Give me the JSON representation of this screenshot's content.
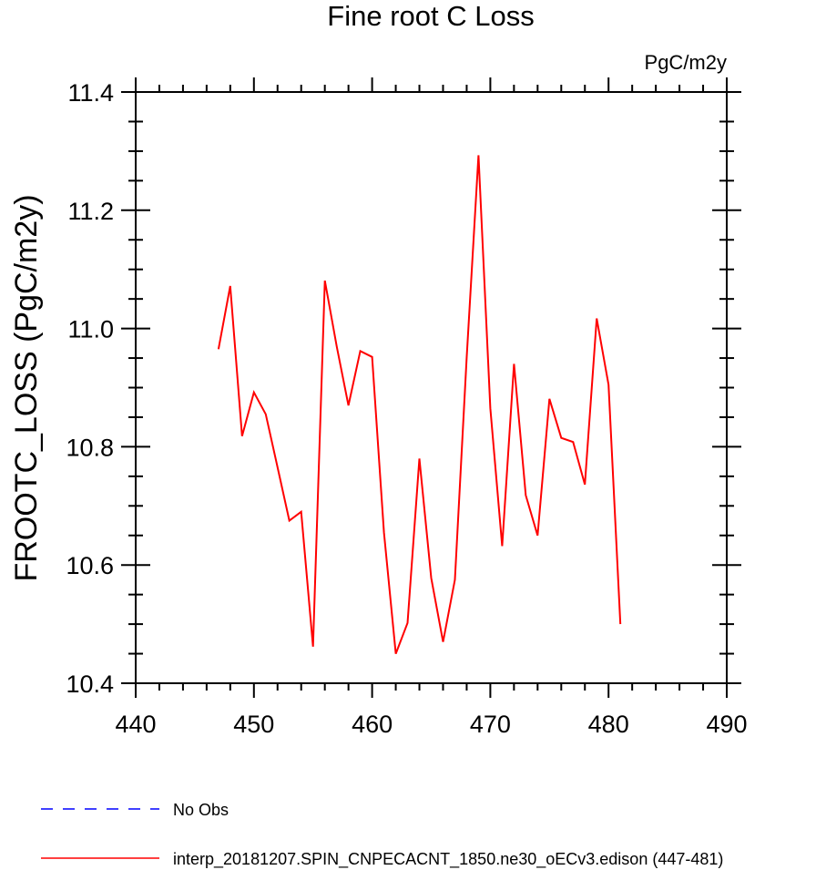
{
  "chart_data": {
    "type": "line",
    "title": "Fine root C Loss",
    "units_label": "PgC/m2y",
    "xlabel": "",
    "ylabel": "FROOTC_LOSS  (PgC/m2y)",
    "xlim": [
      440,
      490
    ],
    "ylim": [
      10.4,
      11.4
    ],
    "x_ticks": [
      440,
      450,
      460,
      470,
      480,
      490
    ],
    "y_ticks": [
      10.4,
      10.6,
      10.8,
      11.0,
      11.2,
      11.4
    ],
    "x_tick_labels": [
      "440",
      "450",
      "460",
      "470",
      "480",
      "490"
    ],
    "y_tick_labels": [
      "10.4",
      "10.6",
      "10.8",
      "11.0",
      "11.2",
      "11.4"
    ],
    "grid": false,
    "legend_position": "bottom",
    "series": [
      {
        "name": "interp_20181207.SPIN_CNPECACNT_1850.ne30_oECv3.edison (447-481)",
        "color": "#ff0000",
        "dash": "solid",
        "x": [
          447,
          448,
          449,
          450,
          451,
          452,
          453,
          454,
          455,
          456,
          457,
          458,
          459,
          460,
          461,
          462,
          463,
          464,
          465,
          466,
          467,
          468,
          469,
          470,
          471,
          472,
          473,
          474,
          475,
          476,
          477,
          478,
          479,
          480,
          481
        ],
        "y": [
          10.965,
          11.072,
          10.818,
          10.892,
          10.855,
          10.765,
          10.675,
          10.69,
          10.462,
          11.081,
          10.97,
          10.87,
          10.962,
          10.952,
          10.655,
          10.45,
          10.502,
          10.78,
          10.578,
          10.47,
          10.575,
          10.95,
          11.293,
          10.865,
          10.632,
          10.94,
          10.718,
          10.65,
          10.881,
          10.815,
          10.808,
          10.736,
          11.017,
          10.905,
          10.5
        ]
      }
    ],
    "legend": [
      {
        "label": "No Obs",
        "color": "#0000ff",
        "dash": "dashed"
      },
      {
        "label": "interp_20181207.SPIN_CNPECACNT_1850.ne30_oECv3.edison (447-481)",
        "color": "#ff0000",
        "dash": "solid"
      }
    ]
  }
}
